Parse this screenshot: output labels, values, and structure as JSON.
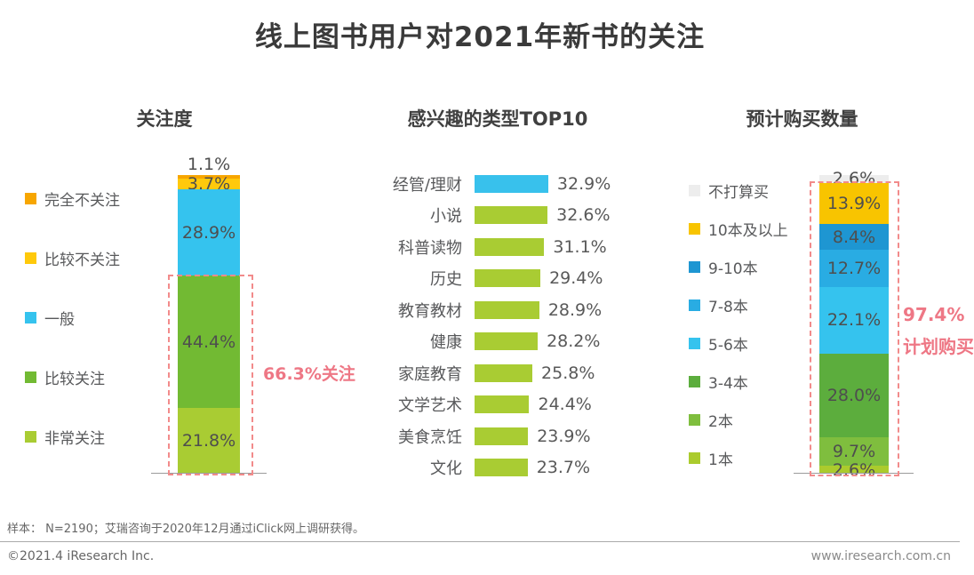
{
  "page": {
    "title": "线上图书用户对2021年新书的关注",
    "footnote": "样本：  N=2190；艾瑞咨询于2020年12月通过iClick网上调研获得。",
    "copyright": "©2021.4 iResearch Inc.",
    "website": "www.iresearch.com.cn"
  },
  "colors": {
    "highlight_pink": "#ee7785",
    "dash_pink": "#f28b8b",
    "text_gray": "#58595b"
  },
  "chart_data": [
    {
      "type": "stacked-bar",
      "title": "关注度",
      "categories": [
        "完全不关注",
        "比较不关注",
        "一般",
        "比较关注",
        "非常关注"
      ],
      "values": [
        1.1,
        3.7,
        28.9,
        44.4,
        21.8
      ],
      "value_labels": [
        "1.1%",
        "3.7%",
        "28.9%",
        "44.4%",
        "21.8%"
      ],
      "colors": [
        "#F7A600",
        "#FFC90B",
        "#35C3EE",
        "#72BA33",
        "#A9CC33"
      ],
      "ylim": [
        0,
        100
      ],
      "annotation": "66.3%关注",
      "highlighted_categories": [
        "比较关注",
        "非常关注"
      ],
      "legend_position": "left"
    },
    {
      "type": "bar",
      "title": "感兴趣的类型TOP10",
      "categories": [
        "经管/理财",
        "小说",
        "科普读物",
        "历史",
        "教育教材",
        "健康",
        "家庭教育",
        "文学艺术",
        "美食烹饪",
        "文化"
      ],
      "values": [
        32.9,
        32.6,
        31.1,
        29.4,
        28.9,
        28.2,
        25.8,
        24.4,
        23.9,
        23.7
      ],
      "value_labels": [
        "32.9%",
        "32.6%",
        "31.1%",
        "29.4%",
        "28.9%",
        "28.2%",
        "25.8%",
        "24.4%",
        "23.9%",
        "23.7%"
      ],
      "colors": [
        "#38C1EC",
        "#A9CC33",
        "#A9CC33",
        "#A9CC33",
        "#A9CC33",
        "#A9CC33",
        "#A9CC33",
        "#A9CC33",
        "#A9CC33",
        "#A9CC33"
      ],
      "orientation": "horizontal",
      "xlim": [
        0,
        35
      ]
    },
    {
      "type": "stacked-bar",
      "title": "预计购买数量",
      "categories": [
        "不打算买",
        "10本及以上",
        "9-10本",
        "7-8本",
        "5-6本",
        "3-4本",
        "2本",
        "1本"
      ],
      "values": [
        2.6,
        13.9,
        8.4,
        12.7,
        22.1,
        28.0,
        9.7,
        2.6
      ],
      "value_labels": [
        "2.6%",
        "13.9%",
        "8.4%",
        "12.7%",
        "22.1%",
        "28.0%",
        "9.7%",
        "2.6%"
      ],
      "colors": [
        "#EDEDED",
        "#F8C400",
        "#1E96D2",
        "#29ACE3",
        "#35C3EE",
        "#5CAD3D",
        "#7FBE3E",
        "#ABCB2D"
      ],
      "ylim": [
        0,
        100
      ],
      "annotation": "97.4%",
      "annotation2": "计划购买",
      "highlighted_categories": [
        "10本及以上",
        "9-10本",
        "7-8本",
        "5-6本",
        "3-4本",
        "2本",
        "1本"
      ],
      "legend_position": "left"
    }
  ]
}
